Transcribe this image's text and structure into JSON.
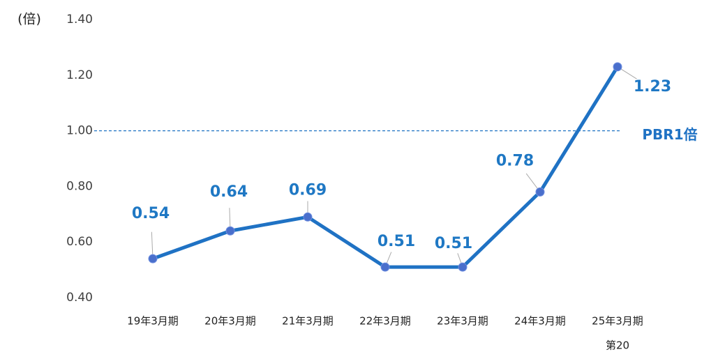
{
  "chart_data": {
    "type": "line",
    "unit_label": "(倍)",
    "categories": [
      "19年3月期",
      "20年3月期",
      "21年3月期",
      "22年3月期",
      "23年3月期",
      "24年3月期",
      "25年3月期"
    ],
    "category_note": "第20",
    "series": [
      {
        "color": "#1f72c4",
        "marker_color": "#4a6fcc",
        "values": [
          0.54,
          0.64,
          0.69,
          0.51,
          0.51,
          0.78,
          1.23
        ]
      }
    ],
    "ylim": [
      0.4,
      1.4
    ],
    "yticks": [
      {
        "value": 0.4,
        "label": "0.40"
      },
      {
        "value": 0.6,
        "label": "0.60"
      },
      {
        "value": 0.8,
        "label": "0.80"
      },
      {
        "value": 1.0,
        "label": "1.00"
      },
      {
        "value": 1.2,
        "label": "1.20"
      },
      {
        "value": 1.4,
        "label": "1.40"
      }
    ],
    "reference_line": {
      "value": 1,
      "label": "PBR1倍",
      "color": "#1f72c4"
    }
  }
}
